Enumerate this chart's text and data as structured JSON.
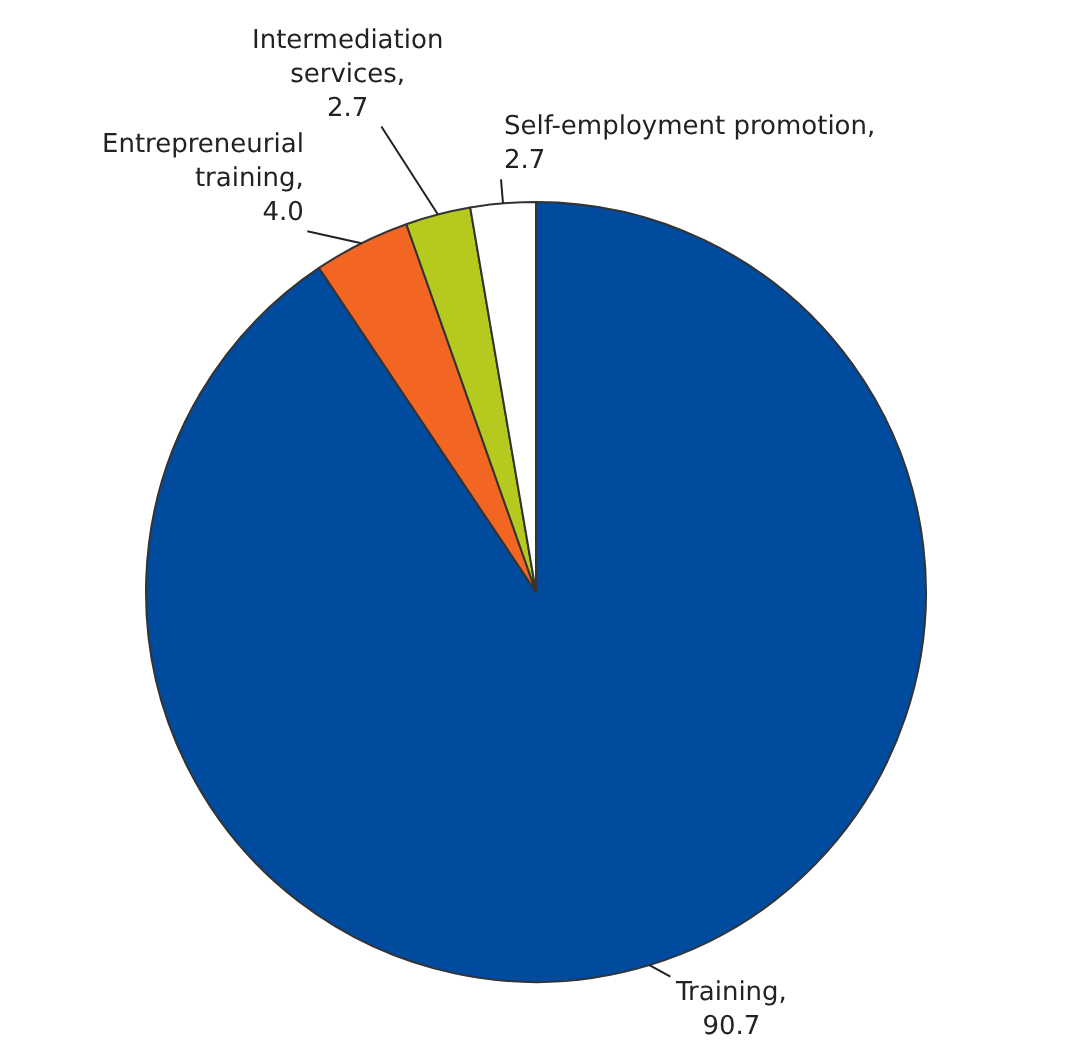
{
  "chart_data": {
    "type": "pie",
    "categories": [
      "Training",
      "Entrepreneurial training",
      "Intermediation services",
      "Self-employment promotion"
    ],
    "values": [
      90.7,
      4.0,
      2.7,
      2.7
    ],
    "value_labels": [
      ", 90.7",
      ", 4.0",
      ", 2.7",
      ", 2.7"
    ],
    "colors": [
      "#004b9e",
      "#f26522",
      "#b5c91e",
      "#ffffff"
    ],
    "legend": false
  }
}
